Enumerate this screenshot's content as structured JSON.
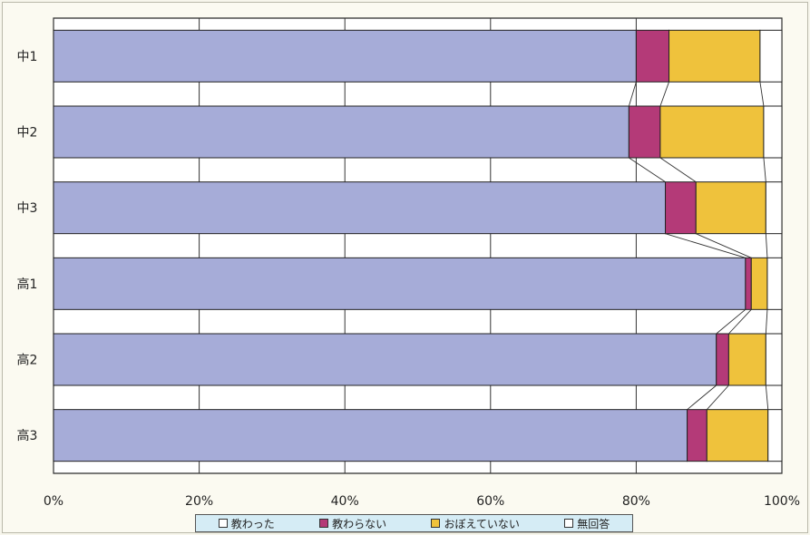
{
  "chart_data": {
    "type": "bar",
    "orientation": "horizontal",
    "stacked": true,
    "percent": true,
    "categories": [
      "中1",
      "中2",
      "中3",
      "高1",
      "高2",
      "高3"
    ],
    "series": [
      {
        "name": "教わった",
        "color": "#a6acd8",
        "values": [
          80,
          79,
          84,
          95,
          91,
          87
        ]
      },
      {
        "name": "教わらない",
        "color": "#b43a78",
        "values": [
          4.5,
          4.3,
          4.2,
          0.8,
          1.7,
          2.7
        ]
      },
      {
        "name": "おぼえていない",
        "color": "#efc23c",
        "values": [
          12.5,
          14.2,
          9.6,
          2.2,
          5.1,
          8.4
        ]
      },
      {
        "name": "無回答",
        "color": "#ffffff",
        "values": [
          3,
          2.5,
          2.2,
          2,
          2.2,
          1.9
        ]
      }
    ],
    "xlim": [
      0,
      100
    ],
    "xticks": [
      "0%",
      "20%",
      "40%",
      "60%",
      "80%",
      "100%"
    ],
    "grid": true,
    "legend_position": "bottom",
    "series_lines": true
  }
}
